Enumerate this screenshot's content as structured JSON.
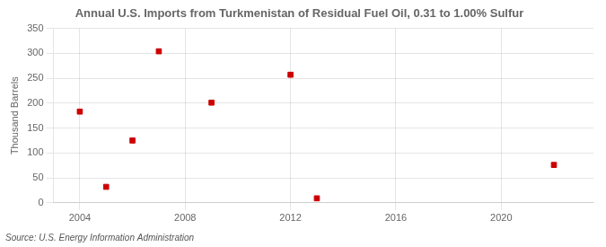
{
  "chart_data": {
    "type": "scatter",
    "title": "Annual U.S. Imports from Turkmenistan of Residual Fuel Oil, 0.31 to 1.00% Sulfur",
    "y_label": "Thousand Barrels",
    "annotation": "Source: U.S. Energy Information Administration",
    "x": [
      2004,
      2005,
      2006,
      2007,
      2009,
      2012,
      2013,
      2022
    ],
    "values": [
      183,
      32,
      125,
      304,
      201,
      257,
      9,
      76
    ],
    "color": "#cc0000",
    "marker": "square",
    "xlim": [
      2003.0,
      2023.5
    ],
    "xticks": [
      2004,
      2008,
      2012,
      2016,
      2020
    ],
    "ylim": [
      0,
      350
    ],
    "yticks": [
      0,
      50,
      100,
      150,
      200,
      250,
      300,
      350
    ],
    "grid": true
  }
}
